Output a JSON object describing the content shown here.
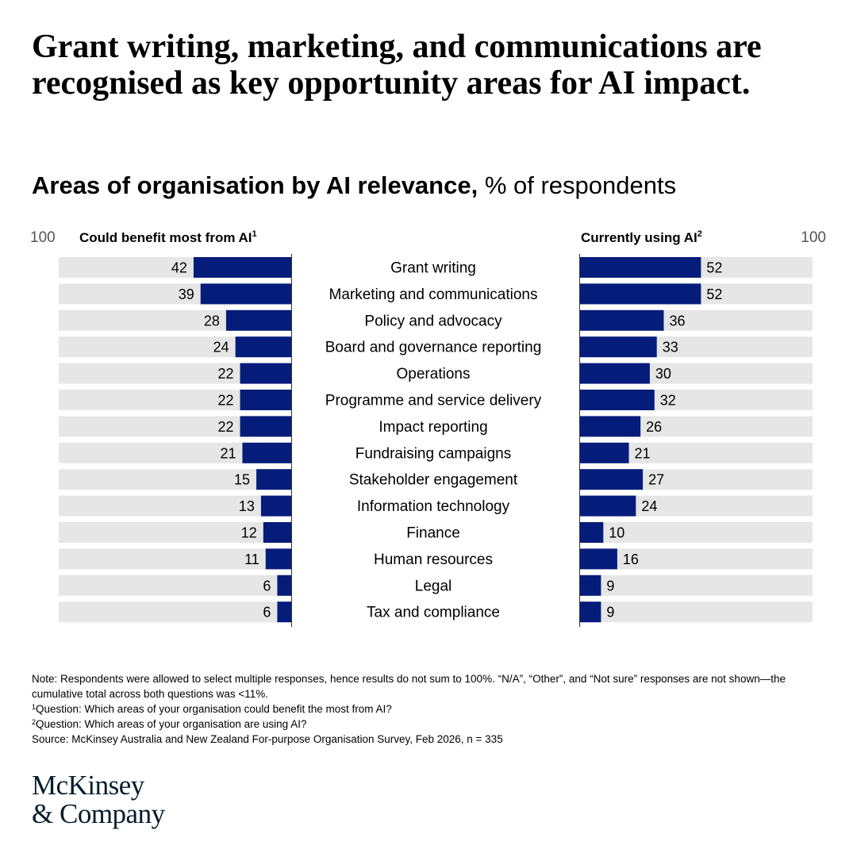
{
  "headline": "Grant writing, marketing, and communications are recognised as key opportunity areas for AI impact.",
  "subtitle": {
    "bold": "Areas of organisation by AI relevance,",
    "regular": "% of respondents"
  },
  "chart_data": {
    "type": "bar",
    "orientation": "horizontal-butterfly",
    "categories": [
      "Grant writing",
      "Marketing and communications",
      "Policy and advocacy",
      "Board and governance reporting",
      "Operations",
      "Programme and service delivery",
      "Impact reporting",
      "Fundraising campaigns",
      "Stakeholder engagement",
      "Information technology",
      "Finance",
      "Human resources",
      "Legal",
      "Tax and compliance"
    ],
    "series": [
      {
        "name": "Could benefit most from AI",
        "footnote": "1",
        "side": "left",
        "values": [
          42,
          39,
          28,
          24,
          22,
          22,
          22,
          21,
          15,
          13,
          12,
          11,
          6,
          6
        ]
      },
      {
        "name": "Currently using AI",
        "footnote": "2",
        "side": "right",
        "values": [
          52,
          52,
          36,
          33,
          30,
          32,
          26,
          21,
          27,
          24,
          10,
          16,
          9,
          9
        ]
      }
    ],
    "axis_max_label": "100",
    "xlim": [
      0,
      100
    ],
    "colors": {
      "bar": "#051c7a",
      "track": "#e6e6e6"
    }
  },
  "notes": {
    "note": "Note: Respondents were allowed to select multiple responses, hence results do not sum to 100%. “N/A”, “Other”, and “Not sure” responses are not shown—the cumulative total across both questions was <11%.",
    "q1_mark": "1",
    "q1": "Question: Which areas of your organisation could benefit the most from AI?",
    "q2_mark": "2",
    "q2": "Question: Which areas of your organisation are using AI?",
    "source": "Source: McKinsey Australia and New Zealand For-purpose Organisation Survey, Feb 2026, n = 335"
  },
  "logo": {
    "line1": "McKinsey",
    "line2": "& Company"
  }
}
